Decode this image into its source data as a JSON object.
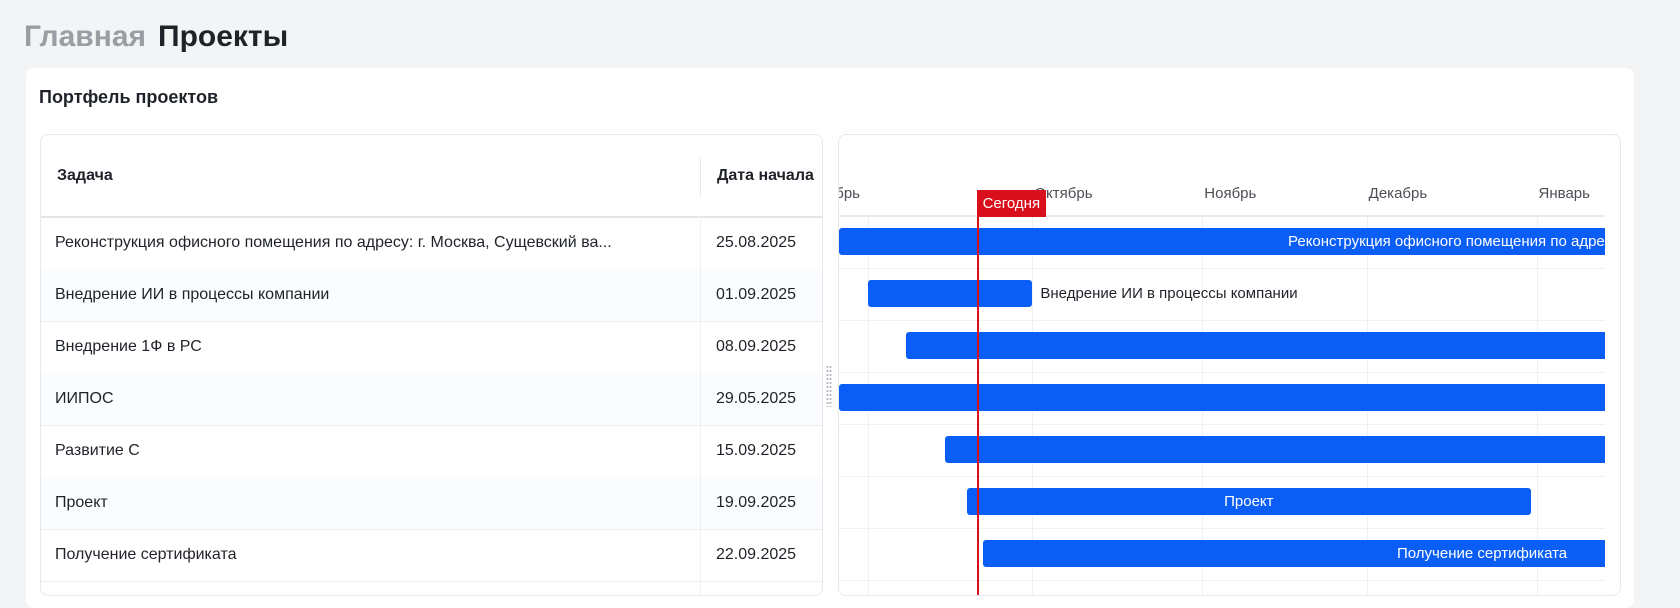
{
  "breadcrumb": {
    "home": "Главная",
    "current": "Проекты"
  },
  "card_title": "Портфель проектов",
  "table": {
    "columns": [
      "Задача",
      "Дата начала"
    ],
    "rows": [
      {
        "task": "Реконструкция офисного помещения по адресу: г. Москва, Сущевский ва...",
        "start": "25.08.2025"
      },
      {
        "task": "Внедрение ИИ в процессы компании",
        "start": "01.09.2025"
      },
      {
        "task": "Внедрение 1Ф в РС",
        "start": "08.09.2025"
      },
      {
        "task": "ИИПОС",
        "start": "29.05.2025"
      },
      {
        "task": "Развитие С",
        "start": "15.09.2025"
      },
      {
        "task": "Проект",
        "start": "19.09.2025"
      },
      {
        "task": "Получение сертификата",
        "start": "22.09.2025"
      }
    ]
  },
  "gantt": {
    "months": [
      {
        "label": "Сентябрь",
        "date": "2025-09-01"
      },
      {
        "label": "Октябрь",
        "date": "2025-10-01"
      },
      {
        "label": "Ноябрь",
        "date": "2025-11-01"
      },
      {
        "label": "Декабрь",
        "date": "2025-12-01"
      },
      {
        "label": "Январь",
        "date": "2026-01-01"
      }
    ],
    "today_label": "Сегодня",
    "today_date": "2025-09-21",
    "bar_color": "#0a5ef5",
    "today_color": "#d9101c",
    "bars": [
      {
        "start": "2025-08-25",
        "end": "2026-03-31",
        "label": "Реконструкция офисного помещения по адресу: г. Москва, Сущевский вал",
        "label_mode": "inside"
      },
      {
        "start": "2025-09-01",
        "end": "2025-10-01",
        "label": "Внедрение ИИ в процессы компании",
        "label_mode": "outside"
      },
      {
        "start": "2025-09-08",
        "end": "2026-03-31",
        "label": "",
        "label_mode": "none"
      },
      {
        "start": "2025-05-29",
        "end": "2026-03-31",
        "label": "",
        "label_mode": "none"
      },
      {
        "start": "2025-09-15",
        "end": "2026-03-31",
        "label": "",
        "label_mode": "none"
      },
      {
        "start": "2025-09-19",
        "end": "2025-12-31",
        "label": "Проект",
        "label_mode": "center"
      },
      {
        "start": "2025-09-22",
        "end": "2026-03-31",
        "label": "Получение сертификата",
        "label_mode": "right"
      }
    ]
  }
}
